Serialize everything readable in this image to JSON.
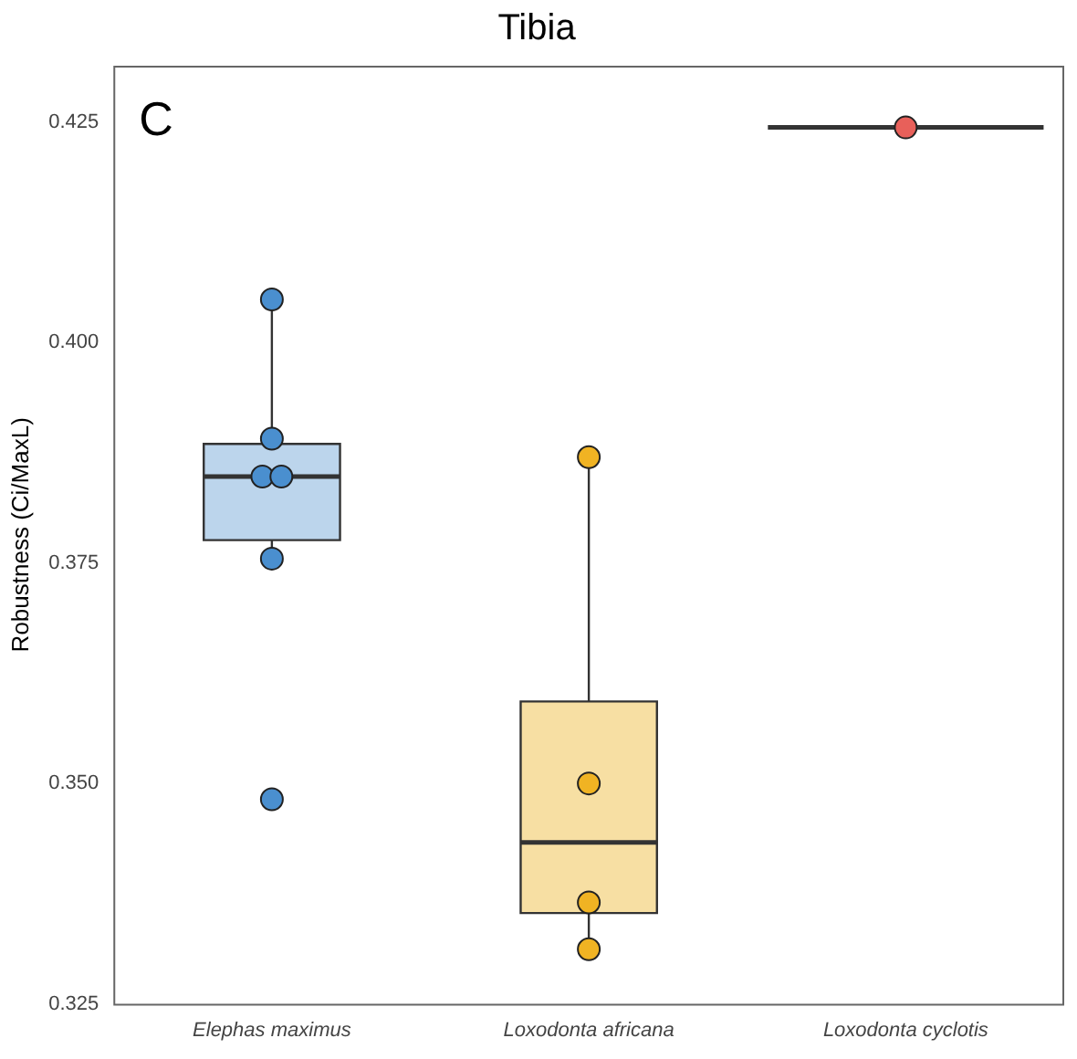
{
  "chart_data": {
    "type": "box",
    "title": "Tibia",
    "ylabel": "Robustness (Ci/MaxL)",
    "annotations": [
      "C"
    ],
    "categories": [
      "Elephas maximus",
      "Loxodonta africana",
      "Loxodonta cyclotis"
    ],
    "colors": [
      "#bcd5ec",
      "#f7dfa3",
      "#333333"
    ],
    "boxes": [
      {
        "low": 0.3755,
        "q1": 0.3776,
        "median": 0.3848,
        "q3": 0.3885,
        "high": 0.4049
      },
      {
        "low": 0.3312,
        "q1": 0.3353,
        "median": 0.3433,
        "q3": 0.3593,
        "high": 0.387
      },
      {
        "low": 0.4244,
        "q1": 0.4244,
        "median": 0.4244,
        "q3": 0.4244,
        "high": 0.4244
      }
    ],
    "series": [
      {
        "type": "scatter",
        "color": "#4a8fcf",
        "x": [
          "Elephas maximus",
          "Elephas maximus",
          "Elephas maximus",
          "Elephas maximus",
          "Elephas maximus",
          "Elephas maximus"
        ],
        "values": [
          0.4049,
          0.3891,
          0.3848,
          0.3848,
          0.3755,
          0.3482
        ]
      },
      {
        "type": "scatter",
        "color": "#f0b323",
        "x": [
          "Loxodonta africana",
          "Loxodonta africana",
          "Loxodonta africana",
          "Loxodonta africana"
        ],
        "values": [
          0.387,
          0.35,
          0.3365,
          0.3312
        ]
      },
      {
        "type": "scatter",
        "color": "#e8605a",
        "x": [
          "Loxodonta cyclotis"
        ],
        "values": [
          0.4244
        ]
      }
    ],
    "ylim": [
      0.325,
      0.4314
    ],
    "yticks": [
      0.325,
      {
        "value": 0.35,
        "label": "0.350"
      },
      0.375,
      {
        "value": 0.4,
        "label": "0.400"
      },
      0.425
    ],
    "grid": false,
    "legend": false,
    "marker": "circle"
  }
}
